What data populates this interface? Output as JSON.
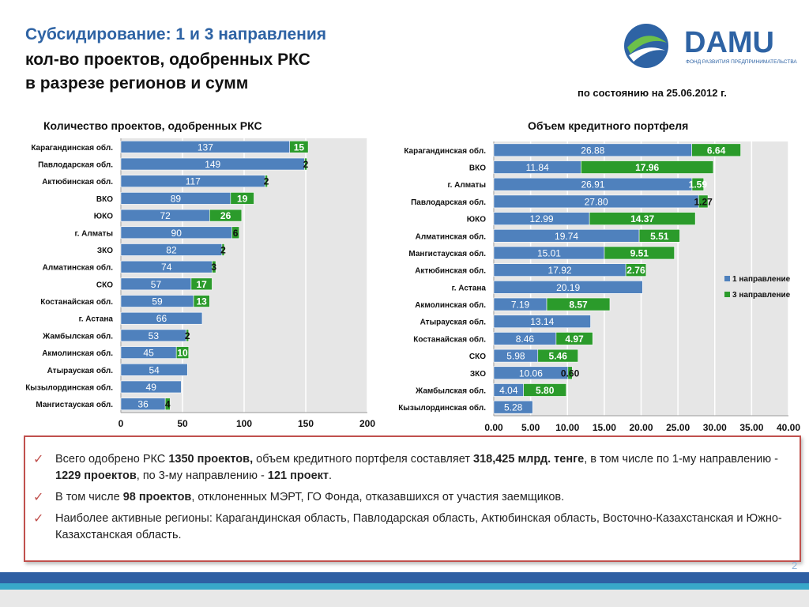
{
  "header": {
    "title_line1": "Субсидирование: 1 и 3 направления",
    "title_line2": "кол-во проектов, одобренных РКС",
    "title_line3": "в разрезе регионов и сумм",
    "date": "по состоянию на 25.06.2012 г.",
    "logo_text": "DAMU",
    "logo_subtext": "ФОНД РАЗВИТИЯ ПРЕДПРИНИМАТЕЛЬСТВА"
  },
  "colors": {
    "series1": "#4f81bd",
    "series2": "#2b9b2b",
    "title": "#2e63a4",
    "note_border": "#c0504d"
  },
  "chart_titles": {
    "left": "Количество проектов, одобренных РКС",
    "right": "Объем кредитного портфеля"
  },
  "chart_data": [
    {
      "type": "bar",
      "orientation": "horizontal",
      "stacked": true,
      "categories": [
        "Карагандинская обл.",
        "Павлодарская обл.",
        "Актюбинская обл.",
        "ВКО",
        "ЮКО",
        "г. Алматы",
        "ЗКО",
        "Алматинская обл.",
        "СКО",
        "Костанайская обл.",
        "г. Астана",
        "Жамбылская обл.",
        "Акмолинская обл.",
        "Атырауская обл.",
        "Кызылординская обл.",
        "Мангистауская обл."
      ],
      "series": [
        {
          "values": [
            137,
            149,
            117,
            89,
            72,
            90,
            82,
            74,
            57,
            59,
            66,
            53,
            45,
            54,
            49,
            36
          ],
          "labels": [
            "137",
            "149",
            "117",
            "89",
            "72",
            "90",
            "82",
            "74",
            "57",
            "59",
            "66",
            "53",
            "45",
            "54",
            "49",
            "36"
          ]
        },
        {
          "values": [
            15,
            2,
            2,
            19,
            26,
            6,
            2,
            3,
            17,
            13,
            0,
            2,
            10,
            0,
            0,
            4
          ],
          "labels": [
            "15",
            "2",
            "2",
            "19",
            "26",
            "6",
            "2",
            "3",
            "17",
            "13",
            "",
            "2",
            "10",
            "",
            "",
            "4"
          ]
        }
      ],
      "xlim": [
        0,
        200
      ],
      "xticks": [
        "0",
        "50",
        "100",
        "150",
        "200"
      ],
      "grid": true
    },
    {
      "type": "bar",
      "orientation": "horizontal",
      "stacked": true,
      "categories": [
        "Карагандинская обл.",
        "ВКО",
        "г. Алматы",
        "Павлодарская обл.",
        "ЮКО",
        "Алматинская обл.",
        "Мангистауская обл.",
        "Актюбинская обл.",
        "г. Астана",
        "Акмолинская обл.",
        "Атырауская обл.",
        "Костанайская обл.",
        "СКО",
        "ЗКО",
        "Жамбылская обл.",
        "Кызылординская обл."
      ],
      "series": [
        {
          "name": "1 направление",
          "values": [
            26.88,
            11.84,
            26.91,
            27.8,
            12.99,
            19.74,
            15.01,
            17.92,
            20.19,
            7.19,
            13.14,
            8.46,
            5.98,
            10.06,
            4.04,
            5.28
          ],
          "labels": [
            "26.88",
            "11.84",
            "26.91",
            "27.80",
            "12.99",
            "19.74",
            "15.01",
            "17.92",
            "20.19",
            "7.19",
            "13.14",
            "8.46",
            "5.98",
            "10.06",
            "4.04",
            "5.28"
          ]
        },
        {
          "name": "3 направление",
          "values": [
            6.64,
            17.96,
            1.59,
            1.27,
            14.37,
            5.51,
            9.51,
            2.76,
            0,
            8.57,
            0,
            4.97,
            5.46,
            0.6,
            5.8,
            0
          ],
          "labels": [
            "6.64",
            "17.96",
            "1.59",
            "1.27",
            "14.37",
            "5.51",
            "9.51",
            "2.76",
            "",
            "8.57",
            "",
            "4.97",
            "5.46",
            "0.60",
            "5.80",
            ""
          ]
        }
      ],
      "xlim": [
        0,
        40
      ],
      "xticks": [
        "0.00",
        "5.00",
        "10.00",
        "15.00",
        "20.00",
        "25.00",
        "30.00",
        "35.00",
        "40.00"
      ],
      "legend_position": "right",
      "grid": true
    }
  ],
  "notes": [
    {
      "parts": [
        {
          "text": "Всего одобрено РКС ",
          "bold": false
        },
        {
          "text": "1350 проектов,",
          "bold": true
        },
        {
          "text": " объем кредитного портфеля составляет ",
          "bold": false
        },
        {
          "text": "318,425 млрд. тенге",
          "bold": true
        },
        {
          "text": ", в том числе по 1-му направлению -  ",
          "bold": false
        },
        {
          "text": "1229 проектов",
          "bold": true
        },
        {
          "text": ", по 3-му направлению - ",
          "bold": false
        },
        {
          "text": "121 проект",
          "bold": true
        },
        {
          "text": ".",
          "bold": false
        }
      ]
    },
    {
      "parts": [
        {
          "text": "В том числе ",
          "bold": false
        },
        {
          "text": "98 проектов",
          "bold": true
        },
        {
          "text": ", отклоненных МЭРТ, ГО Фонда, отказавшихся от участия заемщиков.",
          "bold": false
        }
      ]
    },
    {
      "parts": [
        {
          "text": "Наиболее активные регионы: Карагандинская область, Павлодарская область, Актюбинская область, Восточно-Казахстанская и Южно-Казахстанская область.",
          "bold": false
        }
      ]
    }
  ],
  "page_number": "2"
}
